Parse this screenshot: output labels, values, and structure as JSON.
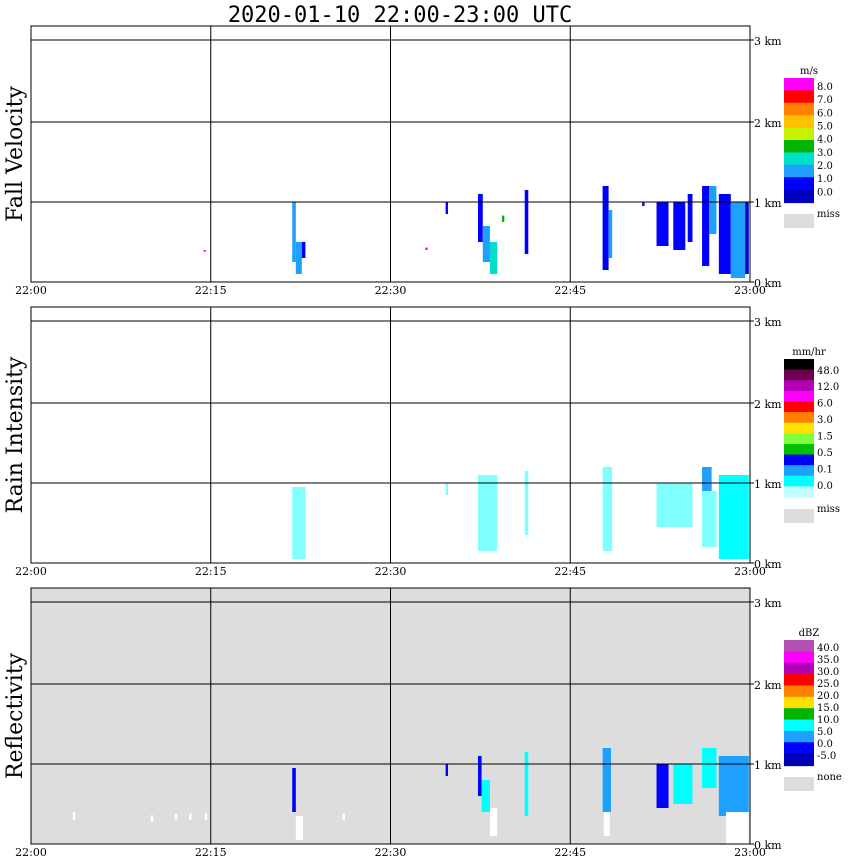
{
  "title": "2020-01-10   22:00-23:00 UTC",
  "chart_data": {
    "type": "heatmap",
    "x_tick_labels": [
      "22:00",
      "22:15",
      "22:30",
      "22:45",
      "23:00"
    ],
    "x_range_minutes": [
      0,
      60
    ],
    "y_tick_labels": [
      "0 km",
      "1 km",
      "2 km",
      "3 km"
    ],
    "y_range_km": [
      0,
      3.2
    ],
    "panels": [
      {
        "id": "fall-velocity",
        "ylabel": "Fall Velocity",
        "background": "#ffffff",
        "legend": {
          "unit": "m/s",
          "labels": [
            "8.0",
            "7.0",
            "6.0",
            "5.0",
            "4.0",
            "3.0",
            "2.0",
            "1.0",
            "0.0"
          ],
          "colors": [
            "#ff00ff",
            "#ff0000",
            "#ff8000",
            "#ffc000",
            "#c8f000",
            "#00b400",
            "#00e0c8",
            "#1ea0ff",
            "#0000ff",
            "#0000c0"
          ],
          "missing_label": "miss",
          "missing_color": "#dddddd"
        },
        "cells": [
          {
            "t0": 21.8,
            "t1": 22.1,
            "h0": 0.25,
            "h1": 1.0,
            "color": "#1ea0ff"
          },
          {
            "t0": 22.1,
            "t1": 22.6,
            "h0": 0.1,
            "h1": 0.5,
            "color": "#1ea0ff"
          },
          {
            "t0": 22.6,
            "t1": 22.9,
            "h0": 0.3,
            "h1": 0.5,
            "color": "#0000ff"
          },
          {
            "t0": 14.4,
            "t1": 14.6,
            "h0": 0.38,
            "h1": 0.4,
            "color": "#ff00ff"
          },
          {
            "t0": 32.9,
            "t1": 33.1,
            "h0": 0.4,
            "h1": 0.43,
            "color": "#ff00ff"
          },
          {
            "t0": 34.6,
            "t1": 34.8,
            "h0": 0.85,
            "h1": 1.0,
            "color": "#0000ff"
          },
          {
            "t0": 37.3,
            "t1": 37.7,
            "h0": 0.5,
            "h1": 1.1,
            "color": "#0000ff"
          },
          {
            "t0": 37.7,
            "t1": 38.3,
            "h0": 0.25,
            "h1": 0.7,
            "color": "#1ea0ff"
          },
          {
            "t0": 38.3,
            "t1": 38.9,
            "h0": 0.1,
            "h1": 0.5,
            "color": "#00e0c8"
          },
          {
            "t0": 39.3,
            "t1": 39.5,
            "h0": 0.75,
            "h1": 0.83,
            "color": "#00b400"
          },
          {
            "t0": 41.2,
            "t1": 41.5,
            "h0": 0.35,
            "h1": 1.15,
            "color": "#0000ff"
          },
          {
            "t0": 47.7,
            "t1": 48.2,
            "h0": 0.15,
            "h1": 1.2,
            "color": "#0000ff"
          },
          {
            "t0": 48.2,
            "t1": 48.5,
            "h0": 0.3,
            "h1": 0.9,
            "color": "#1ea0ff"
          },
          {
            "t0": 51.0,
            "t1": 51.2,
            "h0": 0.95,
            "h1": 1.0,
            "color": "#0000ff"
          },
          {
            "t0": 52.2,
            "t1": 53.2,
            "h0": 0.45,
            "h1": 1.0,
            "color": "#0000ff"
          },
          {
            "t0": 53.6,
            "t1": 54.6,
            "h0": 0.4,
            "h1": 1.0,
            "color": "#0000ff"
          },
          {
            "t0": 54.8,
            "t1": 55.2,
            "h0": 0.5,
            "h1": 1.1,
            "color": "#0000ff"
          },
          {
            "t0": 56.0,
            "t1": 56.6,
            "h0": 0.2,
            "h1": 1.2,
            "color": "#0000ff"
          },
          {
            "t0": 56.6,
            "t1": 57.2,
            "h0": 0.6,
            "h1": 1.2,
            "color": "#1ea0ff"
          },
          {
            "t0": 57.4,
            "t1": 58.4,
            "h0": 0.1,
            "h1": 1.1,
            "color": "#0000ff"
          },
          {
            "t0": 58.4,
            "t1": 59.6,
            "h0": 0.05,
            "h1": 1.0,
            "color": "#1ea0ff"
          },
          {
            "t0": 59.6,
            "t1": 59.9,
            "h0": 0.1,
            "h1": 1.0,
            "color": "#0000c0"
          }
        ]
      },
      {
        "id": "rain-intensity",
        "ylabel": "Rain Intensity",
        "background": "#ffffff",
        "legend": {
          "unit": "mm/hr",
          "labels": [
            "48.0",
            "12.0",
            "6.0",
            "3.0",
            "1.5",
            "0.5",
            "0.1",
            "0.0"
          ],
          "colors": [
            "#000000",
            "#6e0050",
            "#b400b4",
            "#ff00ff",
            "#ff0000",
            "#ff8000",
            "#ffe000",
            "#80ff40",
            "#00c000",
            "#0000ff",
            "#1ea0ff",
            "#00ffff",
            "#c0ffff"
          ],
          "missing_label": "miss",
          "missing_color": "#dddddd"
        },
        "cells": [
          {
            "t0": 21.8,
            "t1": 22.9,
            "h0": 0.05,
            "h1": 0.95,
            "color": "#80ffff"
          },
          {
            "t0": 34.6,
            "t1": 34.8,
            "h0": 0.85,
            "h1": 1.0,
            "color": "#80ffff"
          },
          {
            "t0": 37.3,
            "t1": 38.9,
            "h0": 0.15,
            "h1": 1.1,
            "color": "#80ffff"
          },
          {
            "t0": 41.2,
            "t1": 41.5,
            "h0": 0.35,
            "h1": 1.15,
            "color": "#80ffff"
          },
          {
            "t0": 47.7,
            "t1": 48.5,
            "h0": 0.15,
            "h1": 1.2,
            "color": "#80ffff"
          },
          {
            "t0": 52.2,
            "t1": 55.2,
            "h0": 0.45,
            "h1": 1.0,
            "color": "#80ffff"
          },
          {
            "t0": 56.0,
            "t1": 56.8,
            "h0": 0.9,
            "h1": 1.2,
            "color": "#1ea0ff"
          },
          {
            "t0": 56.0,
            "t1": 57.2,
            "h0": 0.2,
            "h1": 0.9,
            "color": "#80ffff"
          },
          {
            "t0": 57.4,
            "t1": 59.9,
            "h0": 0.05,
            "h1": 1.1,
            "color": "#00ffff"
          }
        ]
      },
      {
        "id": "reflectivity",
        "ylabel": "Reflectivity",
        "background": "#dddddd",
        "legend": {
          "unit": "dBZ",
          "labels": [
            "40.0",
            "35.0",
            "30.0",
            "25.0",
            "20.0",
            "15.0",
            "10.0",
            "5.0",
            "0.0",
            "-5.0"
          ],
          "colors": [
            "#b450b4",
            "#ff00ff",
            "#b400b4",
            "#ff0000",
            "#ff8000",
            "#ffe000",
            "#00b400",
            "#00ffff",
            "#1ea0ff",
            "#0000ff",
            "#0000b4"
          ],
          "missing_label": "none",
          "missing_color": "#dddddd"
        },
        "cells": [
          {
            "t0": 3.5,
            "t1": 3.7,
            "h0": 0.3,
            "h1": 0.4,
            "color": "#ffffff"
          },
          {
            "t0": 10.0,
            "t1": 10.2,
            "h0": 0.28,
            "h1": 0.36,
            "color": "#ffffff"
          },
          {
            "t0": 12.0,
            "t1": 12.2,
            "h0": 0.3,
            "h1": 0.38,
            "color": "#ffffff"
          },
          {
            "t0": 13.2,
            "t1": 13.4,
            "h0": 0.3,
            "h1": 0.38,
            "color": "#ffffff"
          },
          {
            "t0": 14.5,
            "t1": 14.7,
            "h0": 0.3,
            "h1": 0.38,
            "color": "#ffffff"
          },
          {
            "t0": 21.8,
            "t1": 22.1,
            "h0": 0.4,
            "h1": 0.95,
            "color": "#0000ff"
          },
          {
            "t0": 22.1,
            "t1": 22.7,
            "h0": 0.05,
            "h1": 0.35,
            "color": "#ffffff"
          },
          {
            "t0": 26.0,
            "t1": 26.2,
            "h0": 0.3,
            "h1": 0.38,
            "color": "#ffffff"
          },
          {
            "t0": 34.6,
            "t1": 34.8,
            "h0": 0.85,
            "h1": 1.0,
            "color": "#0000ff"
          },
          {
            "t0": 37.3,
            "t1": 37.6,
            "h0": 0.6,
            "h1": 1.1,
            "color": "#0000ff"
          },
          {
            "t0": 37.6,
            "t1": 38.3,
            "h0": 0.4,
            "h1": 0.8,
            "color": "#00ffff"
          },
          {
            "t0": 38.3,
            "t1": 38.9,
            "h0": 0.1,
            "h1": 0.45,
            "color": "#ffffff"
          },
          {
            "t0": 41.2,
            "t1": 41.5,
            "h0": 0.35,
            "h1": 1.15,
            "color": "#00ffff"
          },
          {
            "t0": 47.7,
            "t1": 48.4,
            "h0": 0.4,
            "h1": 1.2,
            "color": "#1ea0ff"
          },
          {
            "t0": 47.8,
            "t1": 48.3,
            "h0": 0.1,
            "h1": 0.4,
            "color": "#ffffff"
          },
          {
            "t0": 52.2,
            "t1": 53.2,
            "h0": 0.45,
            "h1": 1.0,
            "color": "#0000ff"
          },
          {
            "t0": 53.6,
            "t1": 55.2,
            "h0": 0.5,
            "h1": 1.0,
            "color": "#00ffff"
          },
          {
            "t0": 56.0,
            "t1": 57.2,
            "h0": 0.7,
            "h1": 1.2,
            "color": "#00ffff"
          },
          {
            "t0": 57.4,
            "t1": 59.9,
            "h0": 0.35,
            "h1": 1.1,
            "color": "#1ea0ff"
          },
          {
            "t0": 58.0,
            "t1": 59.9,
            "h0": 0.0,
            "h1": 0.4,
            "color": "#ffffff"
          }
        ]
      }
    ]
  }
}
